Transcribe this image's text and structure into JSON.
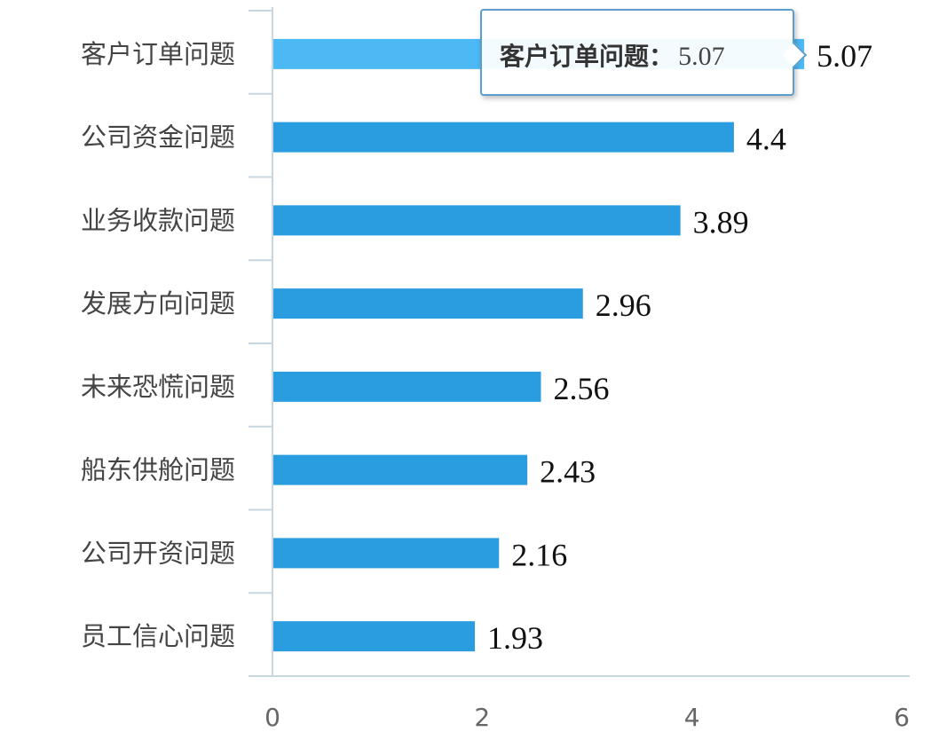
{
  "chart_data": {
    "type": "bar",
    "orientation": "horizontal",
    "categories": [
      "客户订单问题",
      "公司资金问题",
      "业务收款问题",
      "发展方向问题",
      "未来恐慌问题",
      "船东供舱问题",
      "公司开资问题",
      "员工信心问题"
    ],
    "values": [
      5.07,
      4.4,
      3.89,
      2.96,
      2.56,
      2.43,
      2.16,
      1.93
    ],
    "value_labels": [
      "5.07",
      "4.4",
      "3.89",
      "2.96",
      "2.56",
      "2.43",
      "2.16",
      "1.93"
    ],
    "xlim": [
      0,
      6
    ],
    "xticks": [
      "0",
      "2",
      "4",
      "6"
    ],
    "grid": false,
    "legend": "none",
    "colors": {
      "bar": "#2a9de0",
      "bar_highlight": "#4cb8f4",
      "axis": "#c8d6e0"
    },
    "highlighted_index": 0
  },
  "tooltip": {
    "label": "客户订单问题",
    "separator": "：",
    "value": "5.07"
  }
}
